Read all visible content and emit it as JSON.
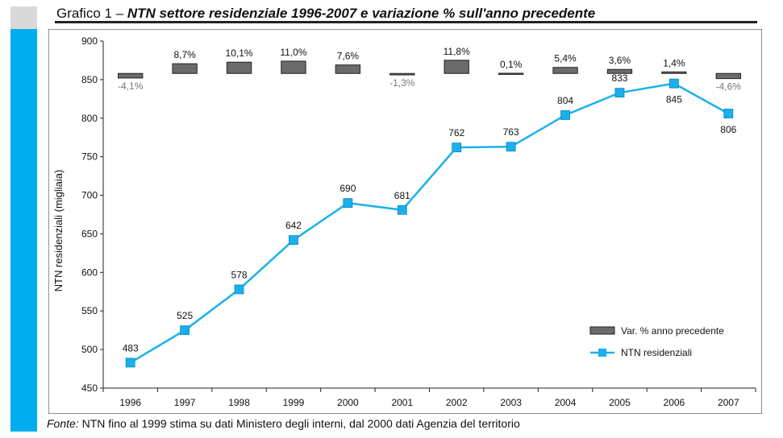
{
  "title": {
    "prefix": "Grafico 1 – ",
    "main": "NTN settore residenziale 1996-2007 e variazione % sull'anno precedente"
  },
  "footer": {
    "source_label": "Fonte:",
    "text": " NTN fino al 1999 stima su dati Ministero degli interni, dal 2000 dati Agenzia del territorio"
  },
  "colors": {
    "accent": "#00adef",
    "series_line": "#1ab0ec",
    "bar_fill": "#6b6b6b",
    "negative_label": "#777777"
  },
  "chart_data": {
    "type": "line",
    "title": "NTN settore residenziale 1996-2007 e variazione % sull'anno precedente",
    "xlabel": "",
    "ylabel": "NTN residenziali (migliaia)",
    "ylim": [
      450,
      900
    ],
    "yticks": [
      450,
      500,
      550,
      600,
      650,
      700,
      750,
      800,
      850,
      900
    ],
    "categories": [
      "1996",
      "1997",
      "1998",
      "1999",
      "2000",
      "2001",
      "2002",
      "2003",
      "2004",
      "2005",
      "2006",
      "2007"
    ],
    "legend_placement": "bottom-right",
    "grid": false,
    "series": [
      {
        "name": "NTN residenziali",
        "type": "line",
        "values": [
          483,
          525,
          578,
          642,
          690,
          681,
          762,
          763,
          804,
          833,
          845,
          806
        ],
        "labels": [
          "483",
          "525",
          "578",
          "642",
          "690",
          "681",
          "762",
          "763",
          "804",
          "833",
          "845",
          "806"
        ]
      },
      {
        "name": "Var. % anno precedente",
        "type": "bar",
        "baseline": 858,
        "values": [
          -4.1,
          8.7,
          10.1,
          11.0,
          7.6,
          -1.3,
          11.8,
          0.1,
          5.4,
          3.6,
          1.4,
          -4.6
        ],
        "labels": [
          "-4,1%",
          "8,7%",
          "10,1%",
          "11,0%",
          "7,6%",
          "-1,3%",
          "11,8%",
          "0,1%",
          "5,4%",
          "3,6%",
          "1,4%",
          "-4,6%"
        ]
      }
    ]
  }
}
